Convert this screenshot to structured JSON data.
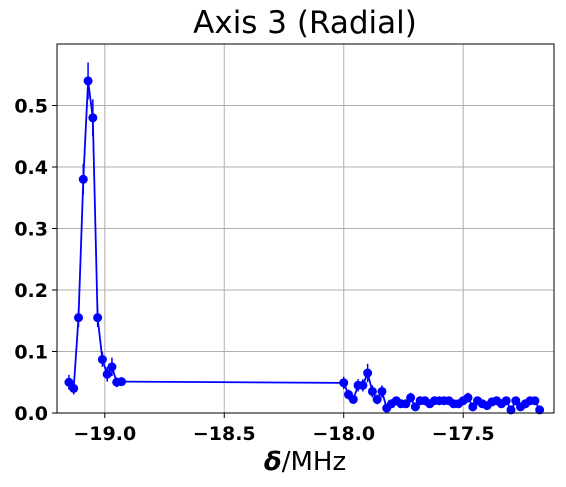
{
  "chart_data": {
    "type": "line",
    "title": "Axis 3 (Radial)",
    "xlabel_symbol": "δ",
    "xlabel_unit": "/MHz",
    "ylabel": "",
    "xlim": [
      -19.2,
      -17.12
    ],
    "ylim": [
      0.0,
      0.6
    ],
    "grid": true,
    "legend": "none",
    "color": "#0000ff",
    "x_ticks": [
      -19.0,
      -18.5,
      -18.0,
      -17.5
    ],
    "x_tick_labels": [
      "−19.0",
      "−18.5",
      "−18.0",
      "−17.5"
    ],
    "y_ticks": [
      0.0,
      0.1,
      0.2,
      0.3,
      0.4,
      0.5
    ],
    "y_tick_labels": [
      "0.0",
      "0.1",
      "0.2",
      "0.3",
      "0.4",
      "0.5"
    ],
    "series": [
      {
        "x": [
          -19.15,
          -19.13,
          -19.11,
          -19.09,
          -19.07,
          -19.05,
          -19.03,
          -19.01,
          -18.99,
          -18.97,
          -18.95,
          -18.93,
          -18.0,
          -17.98,
          -17.96,
          -17.94,
          -17.92,
          -17.9,
          -17.88,
          -17.86,
          -17.84,
          -17.82,
          -17.8,
          -17.78,
          -17.76,
          -17.74,
          -17.72,
          -17.7,
          -17.68,
          -17.66,
          -17.64,
          -17.62,
          -17.6,
          -17.58,
          -17.56,
          -17.54,
          -17.52,
          -17.5,
          -17.48,
          -17.46,
          -17.44,
          -17.42,
          -17.4,
          -17.38,
          -17.36,
          -17.34,
          -17.32,
          -17.3,
          -17.28,
          -17.26,
          -17.24,
          -17.22,
          -17.2,
          -17.18
        ],
        "y": [
          0.05,
          0.04,
          0.155,
          0.38,
          0.54,
          0.48,
          0.155,
          0.087,
          0.063,
          0.075,
          0.05,
          0.051,
          0.049,
          0.03,
          0.022,
          0.045,
          0.045,
          0.065,
          0.035,
          0.022,
          0.035,
          0.008,
          0.015,
          0.02,
          0.015,
          0.015,
          0.025,
          0.01,
          0.02,
          0.02,
          0.015,
          0.02,
          0.02,
          0.02,
          0.02,
          0.015,
          0.015,
          0.02,
          0.025,
          0.01,
          0.02,
          0.015,
          0.012,
          0.018,
          0.02,
          0.015,
          0.02,
          0.005,
          0.02,
          0.01,
          0.015,
          0.02,
          0.02,
          0.005
        ],
        "yerr": [
          0.012,
          0.01,
          0.015,
          0.025,
          0.03,
          0.03,
          0.015,
          0.012,
          0.012,
          0.015,
          0.008,
          0.005,
          0.01,
          0.008,
          0.006,
          0.01,
          0.01,
          0.015,
          0.01,
          0.008,
          0.01,
          0.005,
          0.005,
          0.006,
          0.005,
          0.005,
          0.008,
          0.005,
          0.006,
          0.006,
          0.005,
          0.006,
          0.006,
          0.006,
          0.006,
          0.005,
          0.005,
          0.006,
          0.008,
          0.004,
          0.006,
          0.005,
          0.004,
          0.006,
          0.006,
          0.005,
          0.006,
          0.003,
          0.006,
          0.004,
          0.005,
          0.006,
          0.006,
          0.003
        ]
      }
    ]
  }
}
